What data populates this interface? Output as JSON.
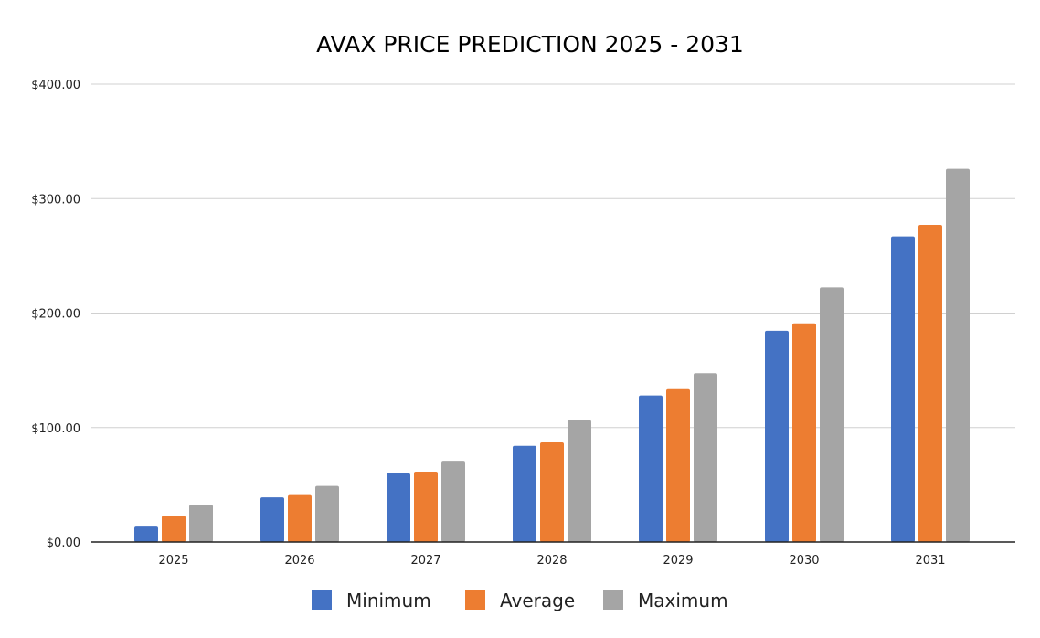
{
  "chart_data": {
    "type": "bar",
    "title": "AVAX PRICE PREDICTION 2025  - 2031",
    "xlabel": "",
    "ylabel": "",
    "categories": [
      "2025",
      "2026",
      "2027",
      "2028",
      "2029",
      "2030",
      "2031"
    ],
    "series": [
      {
        "name": "Minimum",
        "color": "#4472C4",
        "values": [
          13.5,
          39.0,
          60.0,
          84.0,
          128.0,
          184.5,
          267.0
        ]
      },
      {
        "name": "Average",
        "color": "#ED7D31",
        "values": [
          23.0,
          41.0,
          61.5,
          87.0,
          133.5,
          191.0,
          277.0
        ]
      },
      {
        "name": "Maximum",
        "color": "#A5A5A5",
        "values": [
          32.5,
          49.0,
          71.0,
          106.5,
          147.5,
          222.5,
          326.0
        ]
      }
    ],
    "ylim": [
      0,
      400
    ],
    "y_ticks": [
      {
        "value": 0,
        "label": "$0.00"
      },
      {
        "value": 100,
        "label": "$100.00"
      },
      {
        "value": 200,
        "label": "$200.00"
      },
      {
        "value": 300,
        "label": "$300.00"
      },
      {
        "value": 400,
        "label": "$400.00"
      }
    ],
    "grid": true,
    "legend_position": "bottom"
  }
}
